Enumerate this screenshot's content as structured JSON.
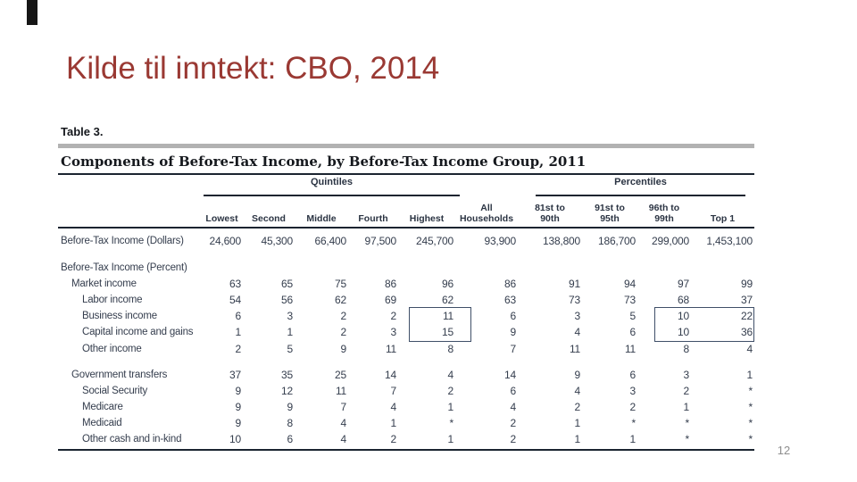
{
  "slide": {
    "title": "Kilde til inntekt: CBO, 2014",
    "page_number": "12",
    "title_color": "#9a3933",
    "accent_bar_color": "#161616"
  },
  "table": {
    "label": "Table 3.",
    "title": "Components of Before-Tax Income, by Before-Tax Income Group, 2011",
    "group_headers": {
      "quintiles": "Quintiles",
      "percentiles": "Percentiles"
    },
    "column_headers": [
      "Lowest",
      "Second",
      "Middle",
      "Fourth",
      "Highest",
      "All\nHouseholds",
      "81st to\n90th",
      "91st to\n95th",
      "96th to\n99th",
      "Top 1"
    ],
    "rows": [
      {
        "label": "Before-Tax Income (Dollars)",
        "indent": 0,
        "values": [
          "24,600",
          "45,300",
          "66,400",
          "97,500",
          "245,700",
          "93,900",
          "138,800",
          "186,700",
          "299,000",
          "1,453,100"
        ]
      },
      {
        "label": "Before-Tax Income (Percent)",
        "indent": 0,
        "values": [
          "",
          "",
          "",
          "",
          "",
          "",
          "",
          "",
          "",
          ""
        ]
      },
      {
        "label": "Market income",
        "indent": 1,
        "values": [
          "63",
          "65",
          "75",
          "86",
          "96",
          "86",
          "91",
          "94",
          "97",
          "99"
        ]
      },
      {
        "label": "Labor income",
        "indent": 2,
        "values": [
          "54",
          "56",
          "62",
          "69",
          "62",
          "63",
          "73",
          "73",
          "68",
          "37"
        ]
      },
      {
        "label": "Business income",
        "indent": 2,
        "values": [
          "6",
          "3",
          "2",
          "2",
          "11",
          "6",
          "3",
          "5",
          "10",
          "22"
        ]
      },
      {
        "label": "Capital income and gains",
        "indent": 2,
        "values": [
          "1",
          "1",
          "2",
          "3",
          "15",
          "9",
          "4",
          "6",
          "10",
          "36"
        ]
      },
      {
        "label": "Other income",
        "indent": 2,
        "values": [
          "2",
          "5",
          "9",
          "11",
          "8",
          "7",
          "11",
          "11",
          "8",
          "4"
        ]
      },
      {
        "label": "Government transfers",
        "indent": 1,
        "values": [
          "37",
          "35",
          "25",
          "14",
          "4",
          "14",
          "9",
          "6",
          "3",
          "1"
        ]
      },
      {
        "label": "Social Security",
        "indent": 2,
        "values": [
          "9",
          "12",
          "11",
          "7",
          "2",
          "6",
          "4",
          "3",
          "2",
          "*"
        ]
      },
      {
        "label": "Medicare",
        "indent": 2,
        "values": [
          "9",
          "9",
          "7",
          "4",
          "1",
          "4",
          "2",
          "2",
          "1",
          "*"
        ]
      },
      {
        "label": "Medicaid",
        "indent": 2,
        "values": [
          "9",
          "8",
          "4",
          "1",
          "*",
          "2",
          "1",
          "*",
          "*",
          "*"
        ]
      },
      {
        "label": "Other cash and in-kind",
        "indent": 2,
        "values": [
          "10",
          "6",
          "4",
          "2",
          "1",
          "2",
          "1",
          "1",
          "*",
          "*"
        ]
      }
    ],
    "highlight_boxes": [
      {
        "name": "highest-quintile-business-and-capital",
        "color": "#3f4f68"
      },
      {
        "name": "top-percentiles-business-and-capital",
        "color": "#3f4f68"
      }
    ]
  }
}
